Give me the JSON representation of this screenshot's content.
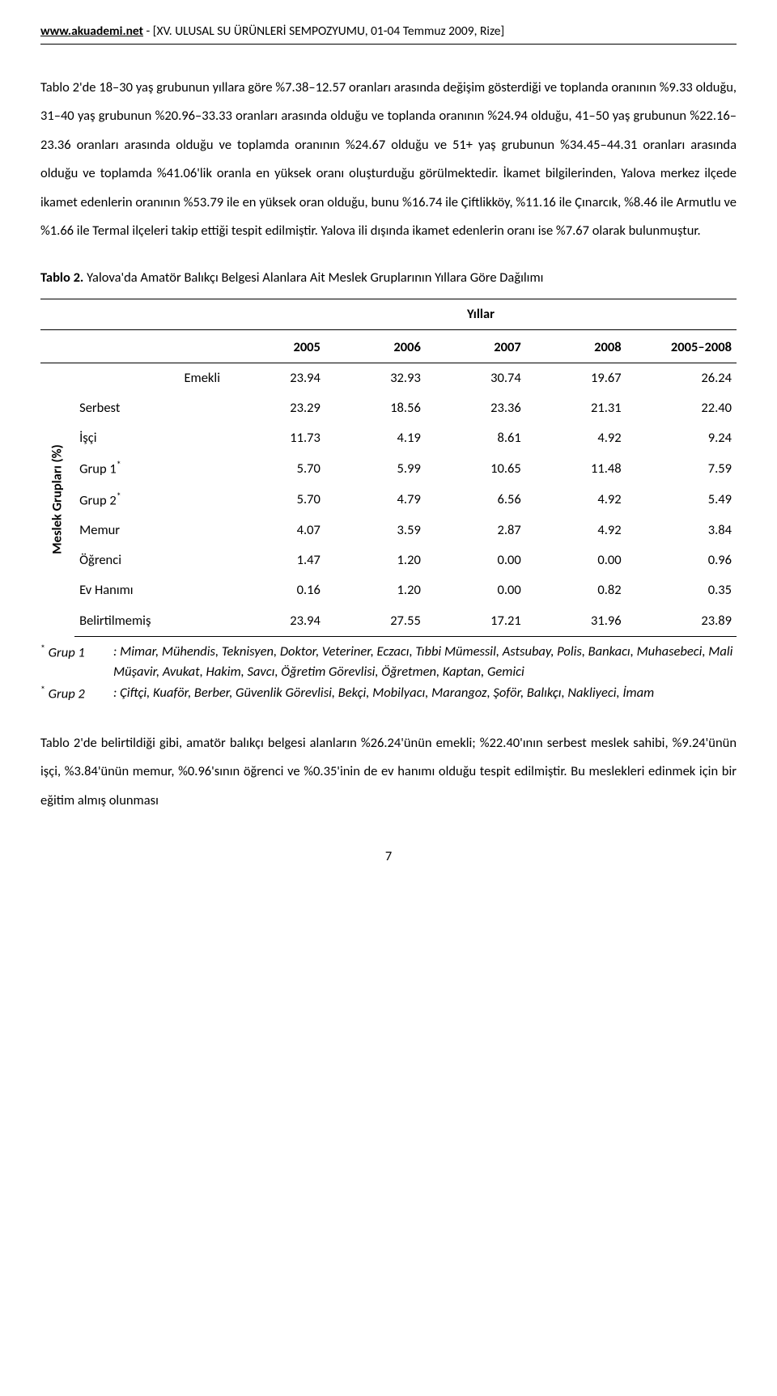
{
  "header": {
    "site": "www.akuademi.net",
    "rest": " - [XV. ULUSAL SU ÜRÜNLERİ SEMPOZYUMU, 01-04 Temmuz 2009, Rize]"
  },
  "para1": "Tablo 2'de 18–30 yaş grubunun yıllara göre %7.38–12.57 oranları arasında değişim gösterdiği ve toplanda oranının %9.33 olduğu, 31–40 yaş grubunun %20.96–33.33 oranları arasında olduğu ve toplanda oranının %24.94 olduğu, 41–50 yaş grubunun %22.16–23.36 oranları arasında olduğu ve toplamda oranının %24.67 olduğu ve 51+ yaş grubunun %34.45–44.31 oranları arasında olduğu ve toplamda %41.06'lik oranla en yüksek oranı oluşturduğu görülmektedir. İkamet bilgilerinden, Yalova merkez ilçede ikamet edenlerin oranının %53.79 ile en yüksek oran olduğu, bunu %16.74 ile Çiftlikköy, %11.16 ile Çınarcık, %8.46 ile Armutlu ve %1.66 ile Termal ilçeleri takip ettiği tespit edilmiştir. Yalova ili dışında ikamet edenlerin oranı ise %7.67 olarak bulunmuştur.",
  "table": {
    "caption_lead": "Tablo 2.",
    "caption_rest": " Yalova'da Amatör Balıkçı Belgesi Alanlara Ait Meslek Gruplarının Yıllara Göre Dağılımı",
    "super_header": "Yıllar",
    "vertical_label": "Meslek Grupları (%)",
    "year_headers": [
      "2005",
      "2006",
      "2007",
      "2008",
      "2005–2008"
    ],
    "rows": [
      {
        "label": "Emekli",
        "v": [
          "23.94",
          "32.93",
          "30.74",
          "19.67",
          "26.24"
        ]
      },
      {
        "label": "Serbest",
        "v": [
          "23.29",
          "18.56",
          "23.36",
          "21.31",
          "22.40"
        ]
      },
      {
        "label": "İşçi",
        "v": [
          "11.73",
          "4.19",
          "8.61",
          "4.92",
          "9.24"
        ]
      },
      {
        "label": "Grup 1",
        "sup": "*",
        "v": [
          "5.70",
          "5.99",
          "10.65",
          "11.48",
          "7.59"
        ]
      },
      {
        "label": "Grup 2",
        "sup": "*",
        "v": [
          "5.70",
          "4.79",
          "6.56",
          "4.92",
          "5.49"
        ]
      },
      {
        "label": "Memur",
        "v": [
          "4.07",
          "3.59",
          "2.87",
          "4.92",
          "3.84"
        ]
      },
      {
        "label": "Öğrenci",
        "v": [
          "1.47",
          "1.20",
          "0.00",
          "0.00",
          "0.96"
        ]
      },
      {
        "label": "Ev Hanımı",
        "v": [
          "0.16",
          "1.20",
          "0.00",
          "0.82",
          "0.35"
        ]
      },
      {
        "label": "Belirtilmemiş",
        "v": [
          "23.94",
          "27.55",
          "17.21",
          "31.96",
          "23.89"
        ]
      }
    ]
  },
  "footnotes": [
    {
      "key_sup": "*",
      "key": " Grup 1",
      "text": ": Mimar, Mühendis, Teknisyen, Doktor, Veteriner, Eczacı, Tıbbi Mümessil, Astsubay, Polis, Bankacı, Muhasebeci, Mali Müşavir, Avukat, Hakim, Savcı, Öğretim Görevlisi, Öğretmen, Kaptan, Gemici"
    },
    {
      "key_sup": "*",
      "key": " Grup 2",
      "text": ": Çiftçi, Kuaför, Berber, Güvenlik Görevlisi, Bekçi, Mobilyacı, Marangoz, Şoför, Balıkçı, Nakliyeci, İmam"
    }
  ],
  "para2": "Tablo 2'de belirtildiği gibi, amatör balıkçı belgesi alanların %26.24'ünün emekli; %22.40'ının serbest meslek sahibi, %9.24'ünün işçi, %3.84'ünün memur, %0.96'sının öğrenci ve %0.35'inin de ev hanımı olduğu tespit edilmiştir. Bu meslekleri edinmek için bir eğitim almış olunması",
  "page_number": "7"
}
